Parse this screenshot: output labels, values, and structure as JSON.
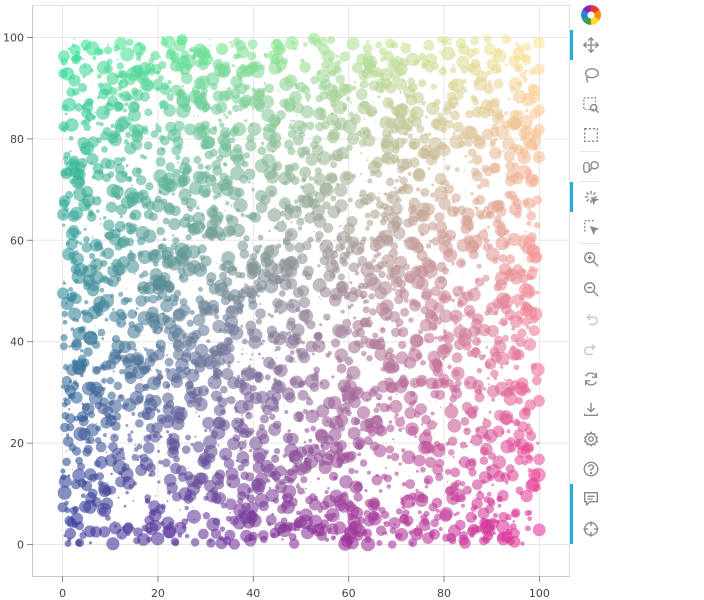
{
  "chart_data": {
    "type": "scatter",
    "title": "",
    "xlabel": "",
    "ylabel": "",
    "xlim": [
      -6.2,
      106.2
    ],
    "ylim": [
      -6.2,
      106.2
    ],
    "x_ticks": [
      "0",
      "20",
      "40",
      "60",
      "80",
      "100"
    ],
    "y_ticks": [
      "0",
      "20",
      "40",
      "60",
      "80",
      "100"
    ],
    "x_tick_values": [
      0,
      20,
      40,
      60,
      80,
      100
    ],
    "y_tick_values": [
      0,
      20,
      40,
      60,
      80,
      100
    ],
    "grid": true,
    "n_points": 4000,
    "x_range": [
      0,
      100
    ],
    "y_range": [
      0,
      100
    ],
    "radius_range": [
      0,
      1.5
    ],
    "fill_alpha": 0.6,
    "color_scheme": {
      "bottom_left": "#32329b",
      "top_left": "#32e696",
      "bottom_right": "#e6329b",
      "top_right": "#ffe696"
    }
  },
  "toolbar": {
    "logo": "bokeh-logo",
    "tools": [
      {
        "name": "pan-icon",
        "active": true
      },
      {
        "name": "lasso-select-icon",
        "active": false
      },
      {
        "name": "zoom-select-icon",
        "active": false
      },
      {
        "name": "box-select-icon",
        "active": false
      },
      {
        "name": "wheel-zoom-icon",
        "active": false
      },
      {
        "name": "tap-icon",
        "active": true
      },
      {
        "name": "box-edit-icon",
        "active": false
      },
      {
        "name": "zoom-in-icon",
        "active": false
      },
      {
        "name": "zoom-out-icon",
        "active": false
      },
      {
        "name": "undo-icon",
        "active": false
      },
      {
        "name": "redo-icon",
        "active": false
      },
      {
        "name": "reset-icon",
        "active": false
      },
      {
        "name": "save-icon",
        "active": false
      },
      {
        "name": "settings-icon",
        "active": false
      },
      {
        "name": "help-icon",
        "active": false
      },
      {
        "name": "hover-icon",
        "active": true
      },
      {
        "name": "crosshair-icon",
        "active": true
      }
    ]
  }
}
